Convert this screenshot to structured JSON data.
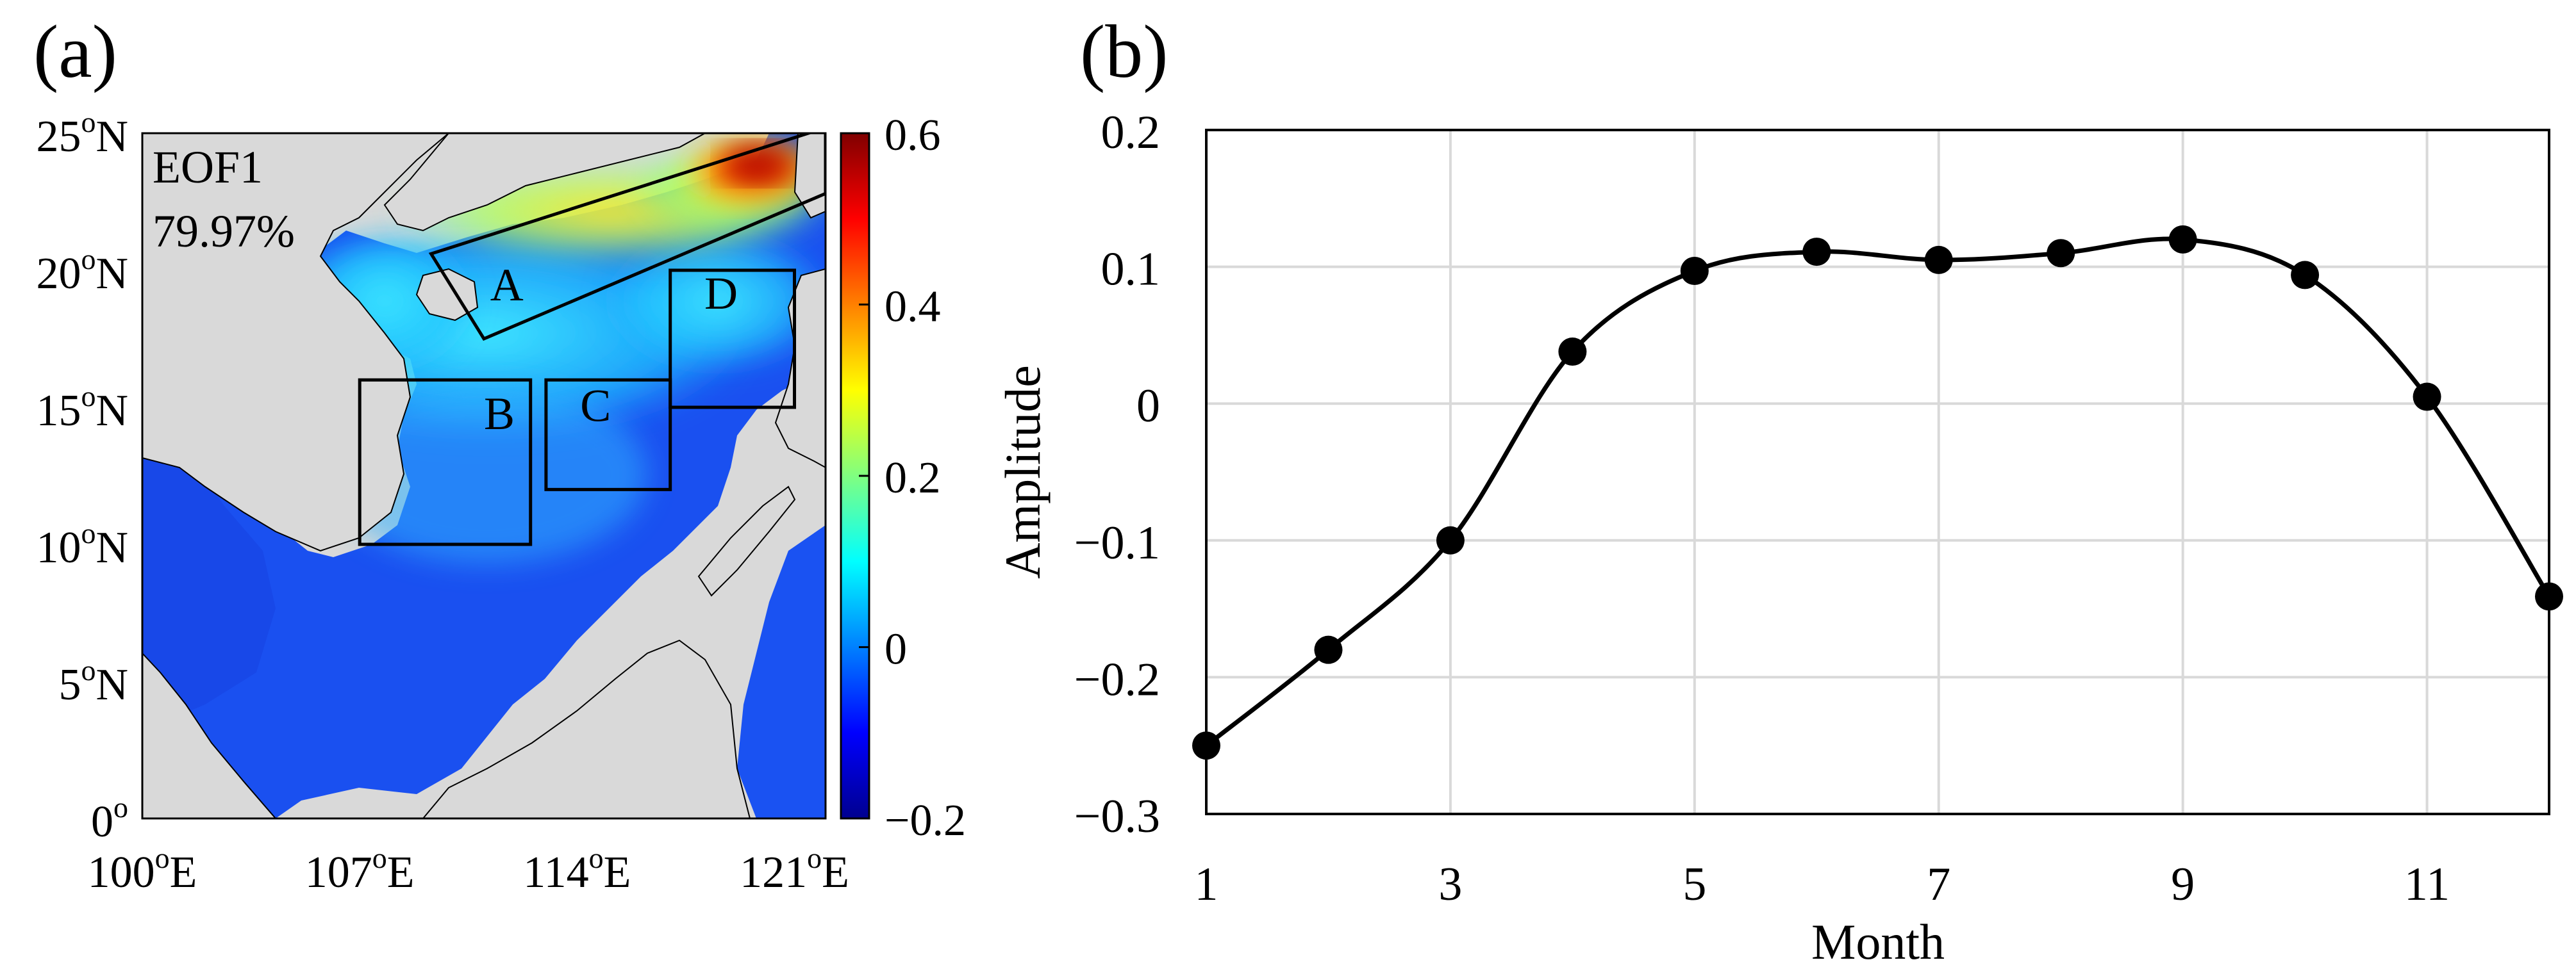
{
  "colors": {
    "land": "#d9d9d9",
    "frame": "#000000",
    "grid": "#d9d9d9",
    "series": "#000000",
    "colorbar": [
      "#00008f",
      "#0000ff",
      "#0080ff",
      "#00ffff",
      "#80ff80",
      "#ffff00",
      "#ff8000",
      "#ff0000",
      "#800000"
    ]
  },
  "chart_data": [
    {
      "type": "heatmap",
      "panel_label": "(a)",
      "title": "EOF1",
      "subtitle": "79.97%",
      "x_range": [
        100,
        122
      ],
      "y_range": [
        0,
        25
      ],
      "x_ticks": [
        {
          "value": 100,
          "num": "100",
          "sup": "o",
          "suffix": "E"
        },
        {
          "value": 107,
          "num": "107",
          "sup": "o",
          "suffix": "E"
        },
        {
          "value": 114,
          "num": "114",
          "sup": "o",
          "suffix": "E"
        },
        {
          "value": 121,
          "num": "121",
          "sup": "o",
          "suffix": "E"
        }
      ],
      "y_ticks": [
        {
          "value": 25,
          "num": "25",
          "sup": "o",
          "suffix": "N"
        },
        {
          "value": 20,
          "num": "20",
          "sup": "o",
          "suffix": "N"
        },
        {
          "value": 15,
          "num": "15",
          "sup": "o",
          "suffix": "N"
        },
        {
          "value": 10,
          "num": "10",
          "sup": "o",
          "suffix": "N"
        },
        {
          "value": 5,
          "num": "5",
          "sup": "o",
          "suffix": "N"
        },
        {
          "value": 0,
          "num": "0",
          "sup": "o",
          "suffix": ""
        }
      ],
      "colorbar": {
        "range": [
          -0.2,
          0.6
        ],
        "ticks": [
          {
            "value": 0.6,
            "label": "0.6"
          },
          {
            "value": 0.4,
            "label": "0.4"
          },
          {
            "value": 0.2,
            "label": "0.2"
          },
          {
            "value": 0,
            "label": "0"
          },
          {
            "value": -0.2,
            "label": "−0.2"
          }
        ]
      },
      "regions": [
        {
          "name": "A",
          "label": "A",
          "corners": [
            [
              111,
              17.5
            ],
            [
              122,
              22.8
            ],
            [
              122,
              25.2
            ],
            [
              109.3,
              20.6
            ]
          ],
          "label_at": [
            111.2,
            18.9
          ]
        },
        {
          "name": "B",
          "label": "B",
          "corners": [
            [
              107,
              10
            ],
            [
              112.5,
              10
            ],
            [
              112.5,
              16
            ],
            [
              107,
              16
            ]
          ],
          "label_at": [
            111,
            14.2
          ]
        },
        {
          "name": "C",
          "label": "C",
          "corners": [
            [
              113,
              12
            ],
            [
              117,
              12
            ],
            [
              117,
              16
            ],
            [
              113,
              16
            ]
          ],
          "label_at": [
            114.1,
            14.5
          ]
        },
        {
          "name": "D",
          "label": "D",
          "corners": [
            [
              117,
              15
            ],
            [
              121,
              15
            ],
            [
              121,
              20
            ],
            [
              117,
              20
            ]
          ],
          "label_at": [
            118.1,
            18.6
          ]
        }
      ]
    },
    {
      "type": "line",
      "panel_label": "(b)",
      "xlabel": "Month",
      "ylabel": "Amplitude",
      "x": [
        1,
        2,
        3,
        4,
        5,
        6,
        7,
        8,
        9,
        10,
        11,
        12
      ],
      "y": [
        -0.25,
        -0.18,
        -0.1,
        0.038,
        0.097,
        0.111,
        0.105,
        0.11,
        0.12,
        0.094,
        0.005,
        -0.141
      ],
      "xlim": [
        1,
        12
      ],
      "ylim": [
        -0.3,
        0.2
      ],
      "x_ticks": [
        {
          "value": 1,
          "label": "1"
        },
        {
          "value": 3,
          "label": "3"
        },
        {
          "value": 5,
          "label": "5"
        },
        {
          "value": 7,
          "label": "7"
        },
        {
          "value": 9,
          "label": "9"
        },
        {
          "value": 11,
          "label": "11"
        }
      ],
      "y_ticks": [
        {
          "value": 0.2,
          "label": "0.2"
        },
        {
          "value": 0.1,
          "label": "0.1"
        },
        {
          "value": 0,
          "label": "0"
        },
        {
          "value": -0.1,
          "label": "−0.1"
        },
        {
          "value": -0.2,
          "label": "−0.2"
        },
        {
          "value": -0.3,
          "label": "−0.3"
        }
      ]
    }
  ]
}
